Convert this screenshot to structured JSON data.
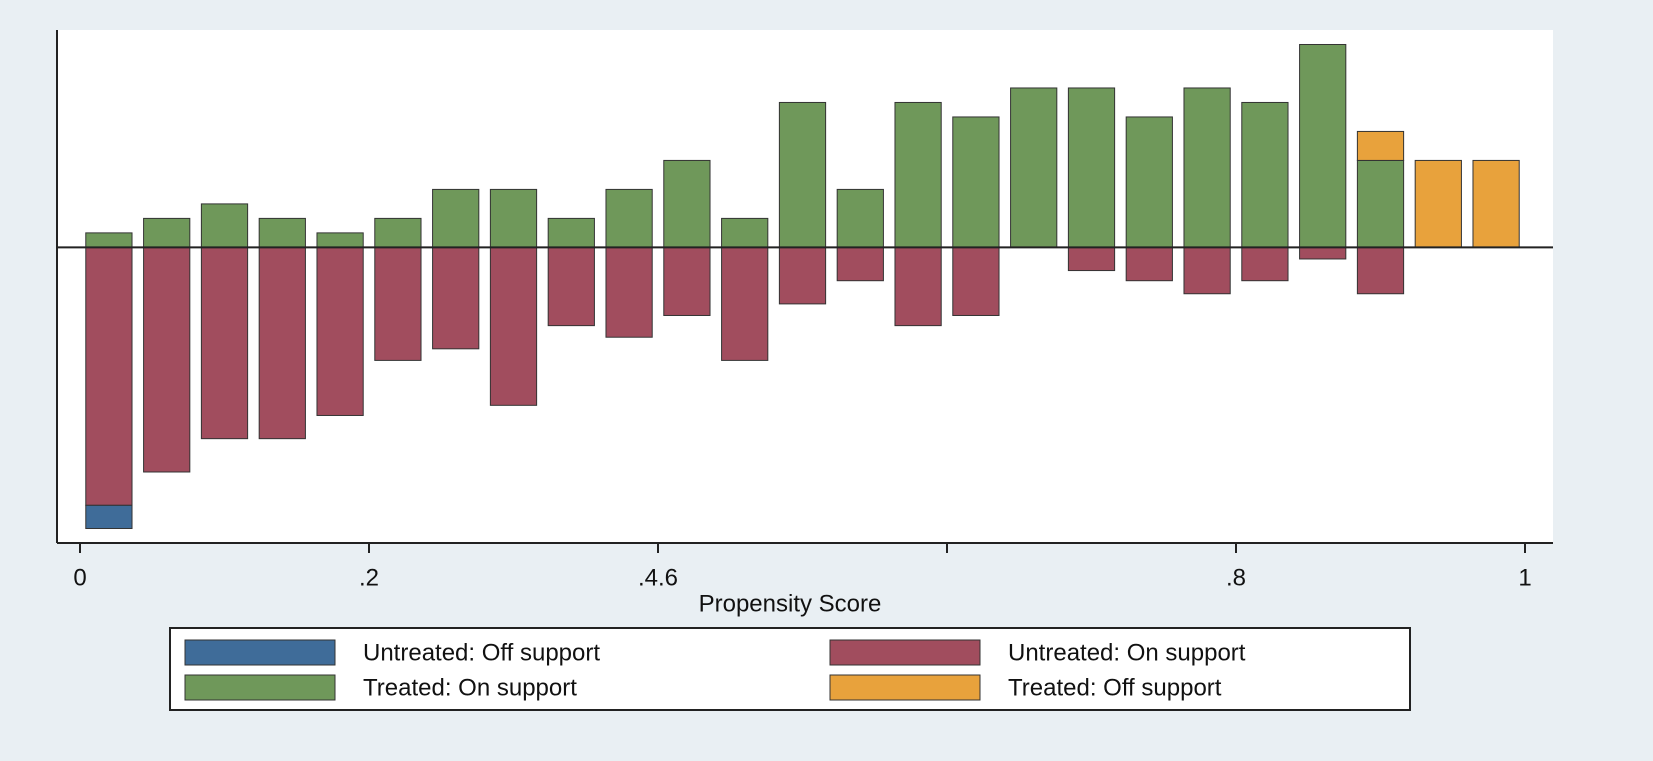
{
  "chart_data": {
    "type": "bar",
    "xlabel": "Propensity Score",
    "x": [
      0.02,
      0.06,
      0.1,
      0.14,
      0.18,
      0.22,
      0.26,
      0.3,
      0.34,
      0.38,
      0.42,
      0.46,
      0.5,
      0.54,
      0.58,
      0.62,
      0.66,
      0.7,
      0.74,
      0.78,
      0.82,
      0.86,
      0.9,
      0.94,
      0.98
    ],
    "series": [
      {
        "name": "Untreated: Off support",
        "color": "#3f6c99",
        "values": [
          -1.6,
          null,
          null,
          null,
          null,
          null,
          null,
          null,
          null,
          null,
          null,
          null,
          null,
          null,
          null,
          null,
          null,
          null,
          null,
          null,
          null,
          null,
          null,
          null,
          null
        ]
      },
      {
        "name": "Untreated: On support",
        "color": "#a14d5e",
        "values": [
          -17.8,
          -15.5,
          -13.2,
          -13.2,
          -11.6,
          -7.8,
          -7,
          -10.9,
          -5.4,
          -6.2,
          -4.7,
          -7.8,
          -3.9,
          -2.3,
          -5.4,
          -4.7,
          null,
          -1.6,
          -2.3,
          -3.2,
          -2.3,
          -0.8,
          -3.2,
          null,
          null
        ]
      },
      {
        "name": "Treated: On support",
        "color": "#6f985a",
        "values": [
          1,
          2,
          3,
          2,
          1,
          2,
          4,
          4,
          2,
          4,
          6,
          2,
          10,
          4,
          10,
          9,
          11,
          11,
          9,
          11,
          10,
          14,
          6,
          null,
          null
        ]
      },
      {
        "name": "Treated: Off support",
        "color": "#e8a23c",
        "values": [
          null,
          null,
          null,
          null,
          null,
          null,
          null,
          null,
          null,
          null,
          null,
          null,
          null,
          null,
          null,
          null,
          null,
          null,
          null,
          null,
          null,
          null,
          2,
          6,
          6
        ]
      }
    ],
    "xlim": [
      0,
      1
    ],
    "xticks": [
      0,
      {
        "value": 0.2,
        "label": ".2"
      },
      {
        "value": 0.4,
        "label": ".4.6"
      },
      {
        "value": 0.6,
        "label": null
      },
      {
        "value": 0.8,
        "label": ".8"
      },
      1
    ],
    "ylim": [
      -20.4,
      15
    ],
    "bar_width": 0.032
  }
}
